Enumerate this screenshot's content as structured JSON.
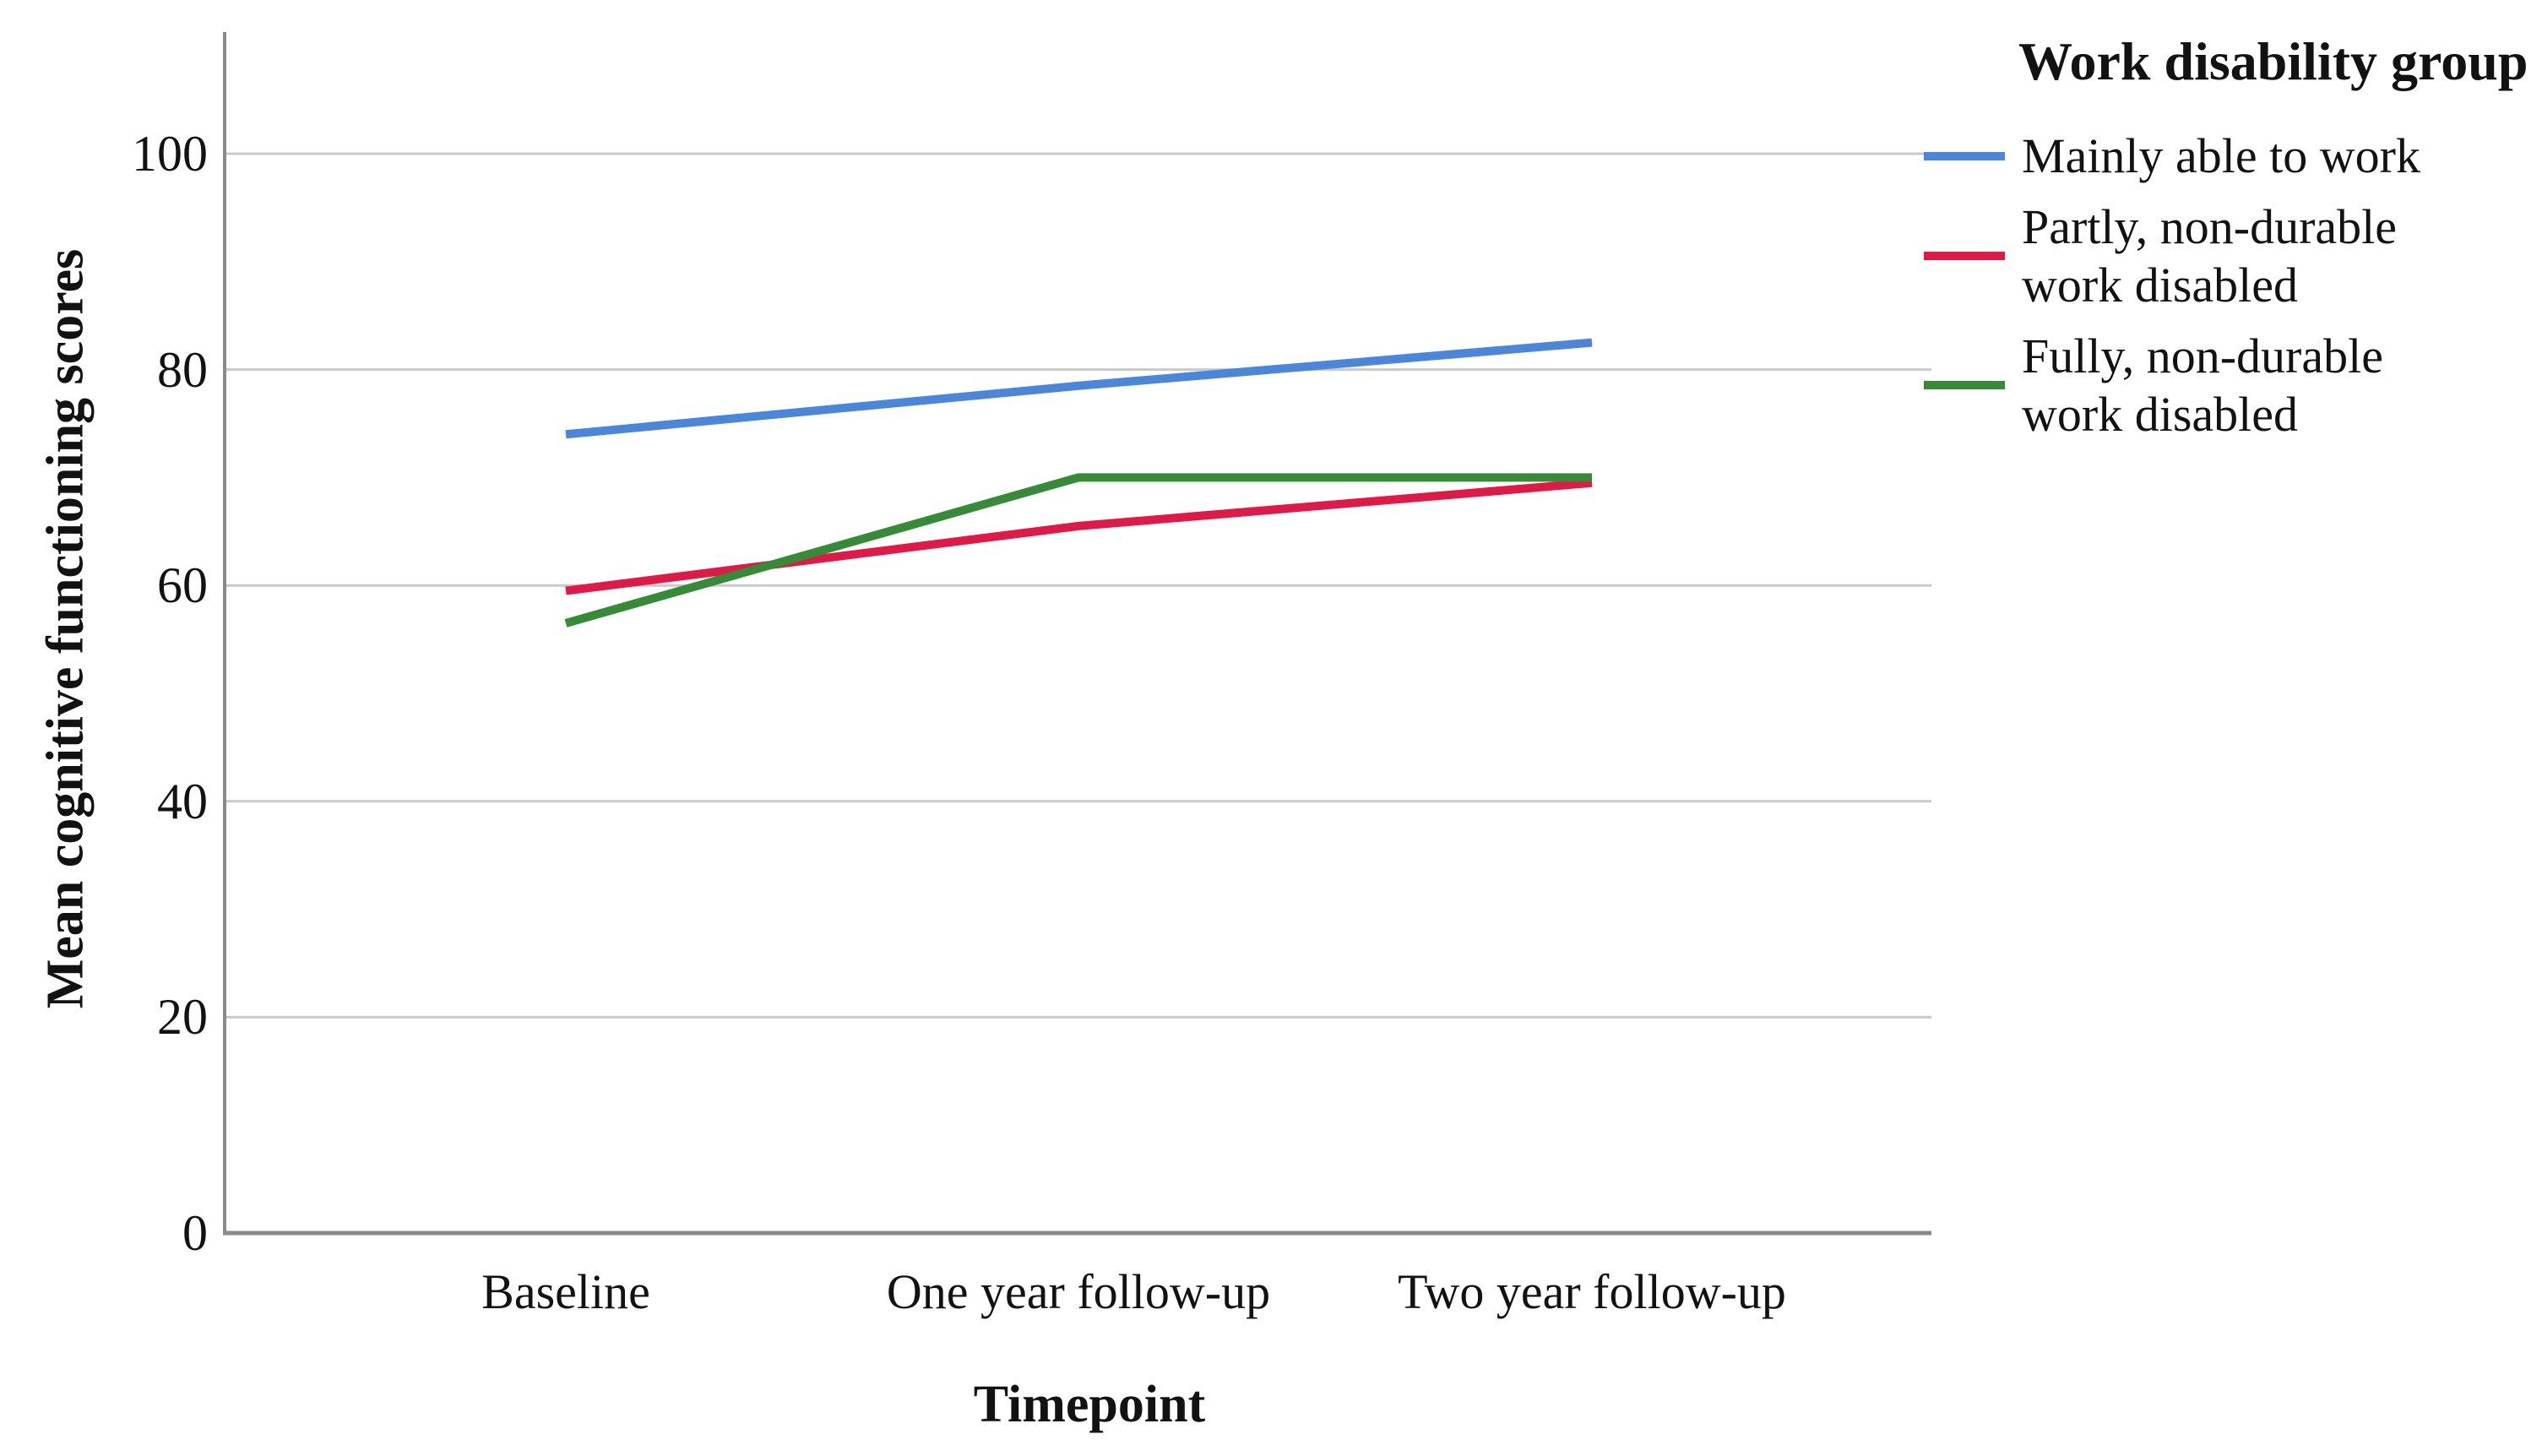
{
  "chart_data": {
    "type": "line",
    "categories": [
      "Baseline",
      "One year follow-up",
      "Two year follow-up"
    ],
    "series": [
      {
        "name": "Mainly able to work",
        "values": [
          74,
          78.5,
          82.5
        ],
        "color": "#4C86DB"
      },
      {
        "name": "Partly, non-durable work disabled",
        "values": [
          59.5,
          65.5,
          69.5
        ],
        "color": "#DF1A47"
      },
      {
        "name": "Fully, non-durable work disabled",
        "values": [
          56.5,
          70,
          70
        ],
        "color": "#378A38"
      }
    ],
    "xlabel": "Timepoint",
    "ylabel": "Mean cognitive functioning scores",
    "ylim": [
      0,
      100
    ],
    "yticks": [
      0,
      20,
      40,
      60,
      80,
      100
    ],
    "grid": true,
    "legend_title": "Work disability group",
    "legend_position": "right",
    "colors": {
      "gridline": "#C9C9C9",
      "axis": "#8A8A8A",
      "text": "#121212",
      "background": "#FFFFFF"
    }
  }
}
